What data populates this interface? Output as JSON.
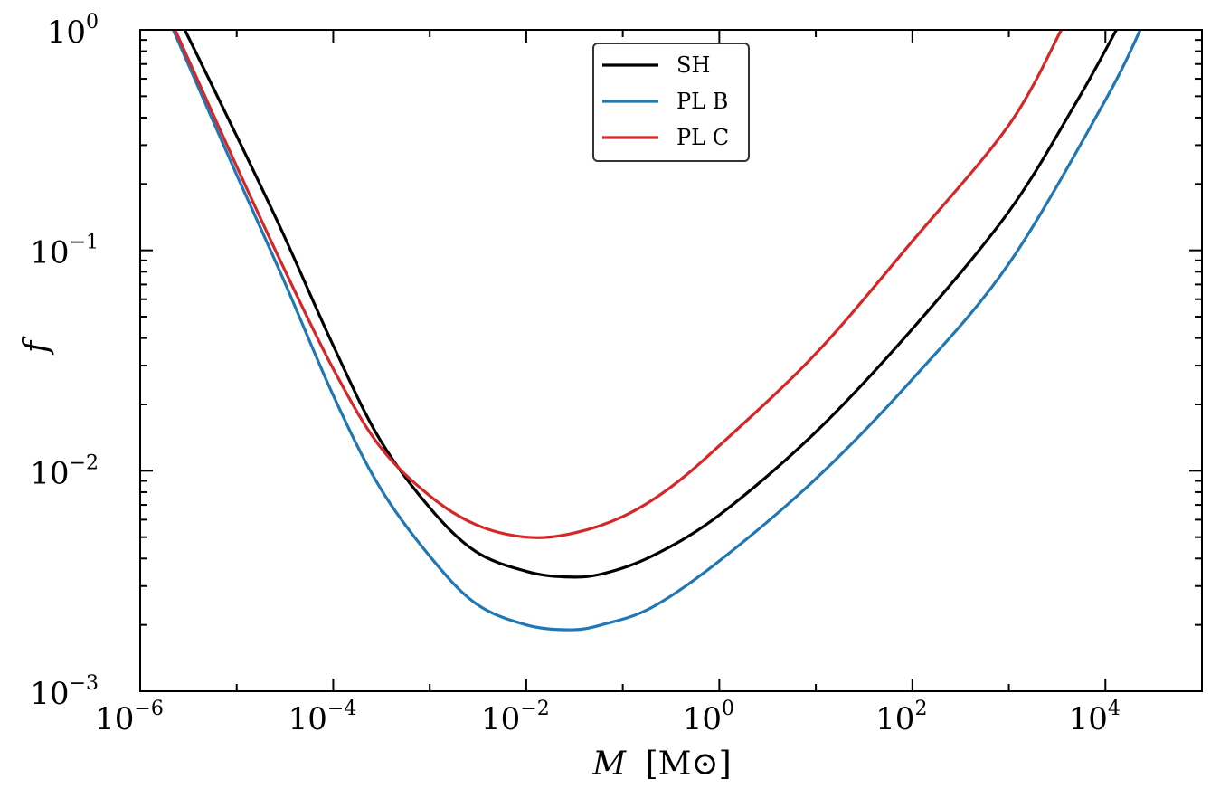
{
  "chart_data": {
    "type": "line",
    "title": "",
    "xlabel": "M [M⊙]",
    "xlabel_var": "M",
    "xlabel_unit": "[M⊙]",
    "ylabel": "f",
    "xscale": "log",
    "yscale": "log",
    "xlim": [
      1e-06,
      100000
    ],
    "ylim": [
      0.001,
      1
    ],
    "x_ticks": [
      {
        "value": 1e-06,
        "base": "10",
        "exp": "−6"
      },
      {
        "value": 0.0001,
        "base": "10",
        "exp": "−4"
      },
      {
        "value": 0.01,
        "base": "10",
        "exp": "−2"
      },
      {
        "value": 1,
        "base": "10",
        "exp": "0"
      },
      {
        "value": 100,
        "base": "10",
        "exp": "2"
      },
      {
        "value": 10000,
        "base": "10",
        "exp": "4"
      }
    ],
    "y_ticks": [
      {
        "value": 0.001,
        "base": "10",
        "exp": "−3"
      },
      {
        "value": 0.01,
        "base": "10",
        "exp": "−2"
      },
      {
        "value": 0.1,
        "base": "10",
        "exp": "−1"
      },
      {
        "value": 1,
        "base": "10",
        "exp": "0"
      }
    ],
    "legend_position": "top-center",
    "series": [
      {
        "name": "SH",
        "color": "#000000",
        "x": [
          2.9e-06,
          1e-05,
          3e-05,
          0.0001,
          0.0003,
          0.001,
          0.003,
          0.01,
          0.025,
          0.06,
          0.2,
          1,
          10,
          100,
          1000,
          5000,
          13000
        ],
        "y": [
          1.0,
          0.33,
          0.12,
          0.037,
          0.014,
          0.0068,
          0.0043,
          0.0035,
          0.0033,
          0.0034,
          0.0041,
          0.0063,
          0.015,
          0.044,
          0.15,
          0.47,
          1.0
        ]
      },
      {
        "name": "PL B",
        "color": "#1f77b4",
        "x": [
          2.2e-06,
          1e-05,
          3e-05,
          0.0001,
          0.0003,
          0.001,
          0.003,
          0.01,
          0.028,
          0.06,
          0.2,
          1,
          10,
          100,
          1000,
          10000,
          23000
        ],
        "y": [
          1.0,
          0.22,
          0.075,
          0.022,
          0.0085,
          0.0041,
          0.0025,
          0.002,
          0.0019,
          0.002,
          0.0024,
          0.0039,
          0.0092,
          0.026,
          0.087,
          0.48,
          1.0
        ]
      },
      {
        "name": "PL C",
        "color": "#d62728",
        "x": [
          2.3e-06,
          1e-05,
          3e-05,
          0.0001,
          0.0003,
          0.001,
          0.003,
          0.01,
          0.03,
          0.1,
          0.3,
          1,
          10,
          100,
          1000,
          3500
        ],
        "y": [
          1.0,
          0.24,
          0.085,
          0.029,
          0.013,
          0.0077,
          0.0057,
          0.005,
          0.0052,
          0.0062,
          0.0083,
          0.013,
          0.034,
          0.11,
          0.37,
          1.0
        ]
      }
    ]
  }
}
